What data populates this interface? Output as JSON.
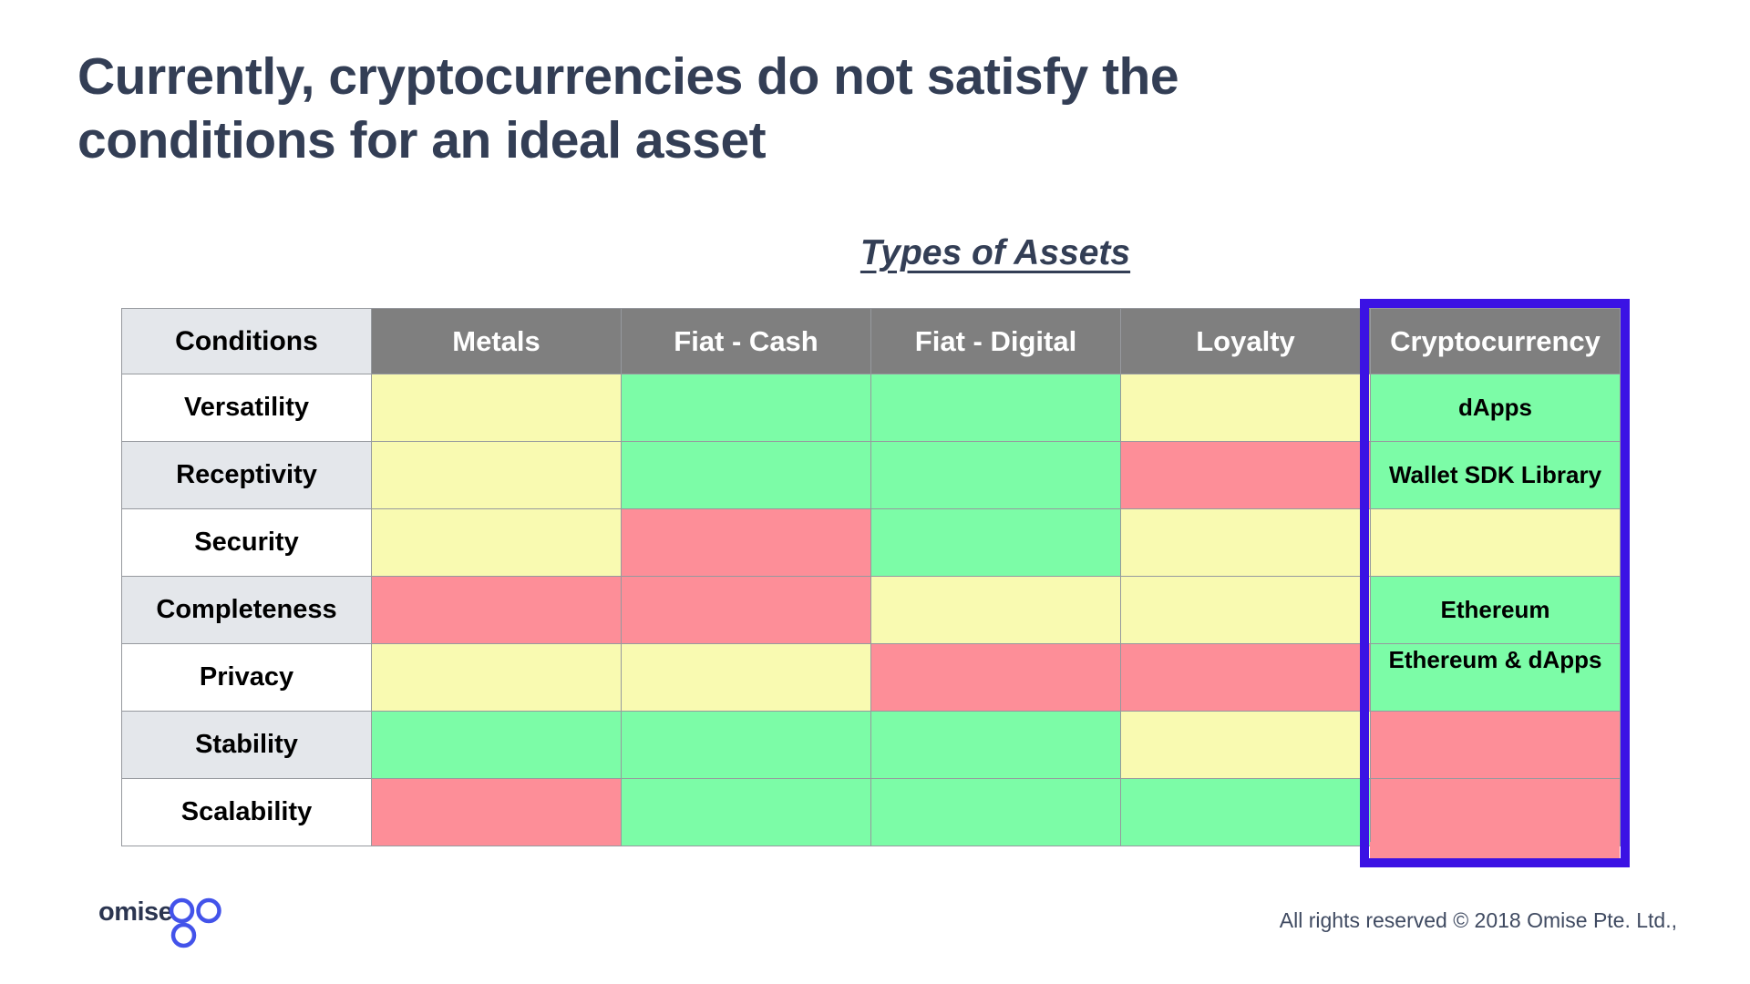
{
  "title": {
    "line1": "Currently, cryptocurrencies do not satisfy the",
    "line2": "conditions for an ideal asset"
  },
  "table_heading": "Types of Assets",
  "colors": {
    "good": "#7CFCA7",
    "partial": "#F9FAB1",
    "bad": "#FD8E98",
    "header_bg": "#7F7F7F",
    "header_text": "#FFFFFF",
    "label_alt_bg": "#E4E7EB",
    "label_bg": "#FFFFFF",
    "grid_line": "#96999E",
    "highlight_border": "#3B12E4",
    "title_text": "#333E55",
    "logo_navy": "#2B3550",
    "logo_blue": "#4353EA"
  },
  "table": {
    "corner_label": "Conditions",
    "columns": [
      "Metals",
      "Fiat - Cash",
      "Fiat - Digital",
      "Loyalty",
      "Cryptocurrency"
    ],
    "highlighted_column": "Cryptocurrency",
    "rows": [
      {
        "label": "Versatility",
        "cells": [
          {
            "rating": "partial"
          },
          {
            "rating": "good"
          },
          {
            "rating": "good"
          },
          {
            "rating": "partial"
          },
          {
            "rating": "good",
            "text": "dApps"
          }
        ]
      },
      {
        "label": "Receptivity",
        "cells": [
          {
            "rating": "partial"
          },
          {
            "rating": "good"
          },
          {
            "rating": "good"
          },
          {
            "rating": "bad"
          },
          {
            "rating": "good",
            "text": "Wallet SDK Library"
          }
        ]
      },
      {
        "label": "Security",
        "cells": [
          {
            "rating": "partial"
          },
          {
            "rating": "bad"
          },
          {
            "rating": "good"
          },
          {
            "rating": "partial"
          },
          {
            "rating": "partial",
            "text": ""
          }
        ]
      },
      {
        "label": "Completeness",
        "cells": [
          {
            "rating": "bad"
          },
          {
            "rating": "bad"
          },
          {
            "rating": "partial"
          },
          {
            "rating": "partial"
          },
          {
            "rating": "good",
            "text": "Ethereum"
          }
        ]
      },
      {
        "label": "Privacy",
        "cells": [
          {
            "rating": "partial"
          },
          {
            "rating": "partial"
          },
          {
            "rating": "bad"
          },
          {
            "rating": "bad"
          },
          {
            "rating": "good",
            "text": "Ethereum & dApps",
            "text_align": "top"
          }
        ]
      },
      {
        "label": "Stability",
        "cells": [
          {
            "rating": "good"
          },
          {
            "rating": "good"
          },
          {
            "rating": "good"
          },
          {
            "rating": "partial"
          },
          {
            "rating": "bad",
            "text": ""
          }
        ]
      },
      {
        "label": "Scalability",
        "cells": [
          {
            "rating": "bad"
          },
          {
            "rating": "good"
          },
          {
            "rating": "good"
          },
          {
            "rating": "good"
          },
          {
            "rating": "bad",
            "text": ""
          }
        ]
      }
    ]
  },
  "footer": {
    "logo_text_dark": "omise",
    "logo_text_circles": "go",
    "copyright": "All rights reserved © 2018 Omise Pte. Ltd.,"
  }
}
